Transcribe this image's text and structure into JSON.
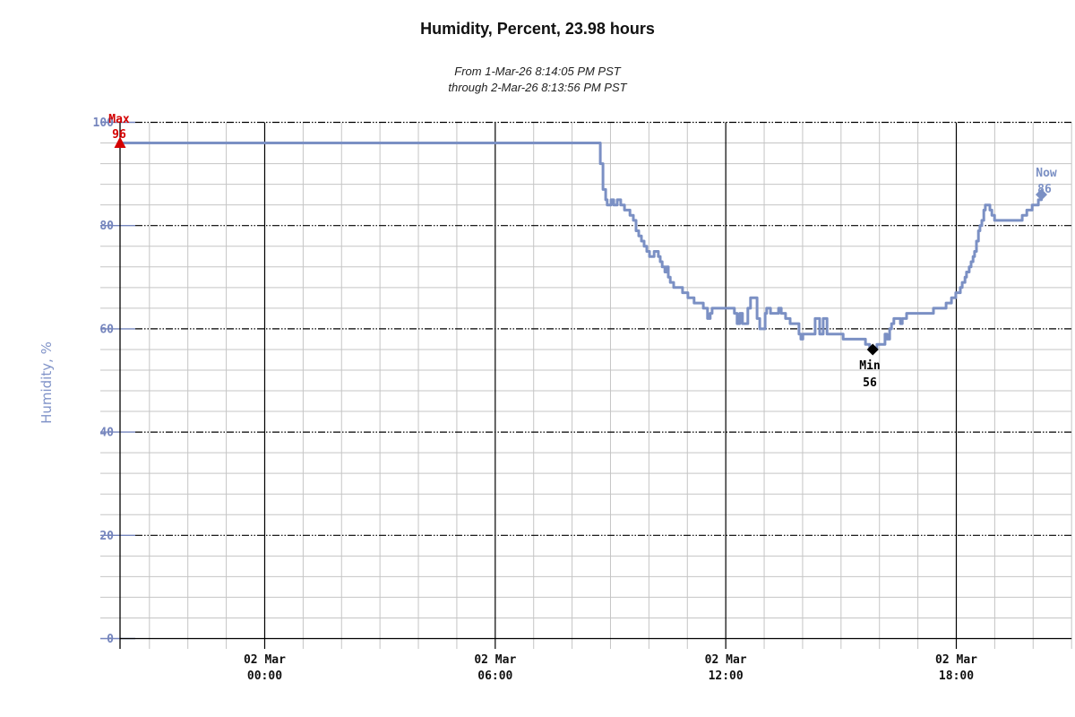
{
  "header": {
    "title": "Humidity, Percent, 23.98 hours",
    "subtitle_line1": "From 1-Mar-26 8:14:05 PM PST",
    "subtitle_line2": "through 2-Mar-26 8:13:56 PM PST"
  },
  "chart_data": {
    "type": "line",
    "title": "Humidity, Percent, 23.98 hours",
    "xlabel": "",
    "ylabel": "Humidity, %",
    "ylim": [
      0,
      100
    ],
    "y_major_ticks": [
      0,
      20,
      40,
      60,
      80,
      100
    ],
    "y_minor_step": 4,
    "duration_hours": 23.98,
    "x_first_minor_hours": 0.765,
    "x_minor_tick_hours": 1,
    "x_axis_end_hours": 24.765,
    "x_major_ticks": [
      {
        "date": "02 Mar",
        "time": "00:00",
        "hours_from_start": 3.765
      },
      {
        "date": "02 Mar",
        "time": "06:00",
        "hours_from_start": 9.765
      },
      {
        "date": "02 Mar",
        "time": "12:00",
        "hours_from_start": 15.765
      },
      {
        "date": "02 Mar",
        "time": "18:00",
        "hours_from_start": 21.765
      }
    ],
    "grid": {
      "minor_color": "#C5C5C5",
      "major_color": "#000000",
      "major_h_dash": "8 2 1.5 2 1.5 2"
    },
    "colors": {
      "line": "#7B90C4",
      "axis_text": "#7585BD",
      "ylabel_text": "#8093C8",
      "max_marker": "#D40000",
      "min_marker": "#000000",
      "now_marker": "#7B90C4"
    },
    "legend": "none",
    "series": [
      {
        "name": "Humidity",
        "unit": "%",
        "points": [
          [
            0,
            96
          ],
          [
            12.45,
            96
          ],
          [
            12.5,
            92
          ],
          [
            12.57,
            87
          ],
          [
            12.64,
            85
          ],
          [
            12.68,
            84
          ],
          [
            12.78,
            85
          ],
          [
            12.85,
            84
          ],
          [
            12.94,
            85
          ],
          [
            13.03,
            84
          ],
          [
            13.13,
            83
          ],
          [
            13.27,
            82
          ],
          [
            13.36,
            81
          ],
          [
            13.43,
            79
          ],
          [
            13.5,
            78
          ],
          [
            13.57,
            77
          ],
          [
            13.64,
            76
          ],
          [
            13.71,
            75
          ],
          [
            13.78,
            74
          ],
          [
            13.85,
            74
          ],
          [
            13.9,
            75
          ],
          [
            13.97,
            75
          ],
          [
            14.01,
            74
          ],
          [
            14.06,
            73
          ],
          [
            14.11,
            72
          ],
          [
            14.18,
            71
          ],
          [
            14.22,
            72
          ],
          [
            14.27,
            70
          ],
          [
            14.32,
            69
          ],
          [
            14.41,
            68
          ],
          [
            14.6,
            68
          ],
          [
            14.64,
            67
          ],
          [
            14.78,
            66
          ],
          [
            14.94,
            65
          ],
          [
            15.18,
            64
          ],
          [
            15.29,
            62
          ],
          [
            15.36,
            63
          ],
          [
            15.41,
            64
          ],
          [
            15.95,
            64
          ],
          [
            15.99,
            63
          ],
          [
            16.06,
            61
          ],
          [
            16.13,
            63
          ],
          [
            16.2,
            61
          ],
          [
            16.27,
            61
          ],
          [
            16.34,
            64
          ],
          [
            16.41,
            66
          ],
          [
            16.51,
            66
          ],
          [
            16.58,
            62
          ],
          [
            16.65,
            60
          ],
          [
            16.72,
            60
          ],
          [
            16.79,
            63
          ],
          [
            16.83,
            64
          ],
          [
            16.93,
            63
          ],
          [
            17.09,
            63
          ],
          [
            17.14,
            64
          ],
          [
            17.21,
            63
          ],
          [
            17.32,
            62
          ],
          [
            17.44,
            61
          ],
          [
            17.63,
            61
          ],
          [
            17.67,
            59
          ],
          [
            17.72,
            58
          ],
          [
            17.77,
            59
          ],
          [
            18.05,
            59
          ],
          [
            18.09,
            62
          ],
          [
            18.16,
            62
          ],
          [
            18.21,
            59
          ],
          [
            18.26,
            59
          ],
          [
            18.3,
            62
          ],
          [
            18.35,
            62
          ],
          [
            18.4,
            59
          ],
          [
            18.75,
            59
          ],
          [
            18.82,
            58
          ],
          [
            18.96,
            58
          ],
          [
            19.33,
            58
          ],
          [
            19.4,
            57
          ],
          [
            19.47,
            57
          ],
          [
            19.51,
            56
          ],
          [
            19.65,
            56
          ],
          [
            19.7,
            57
          ],
          [
            19.86,
            57
          ],
          [
            19.91,
            59
          ],
          [
            19.96,
            58
          ],
          [
            20.03,
            60
          ],
          [
            20.08,
            61
          ],
          [
            20.14,
            62
          ],
          [
            20.26,
            62
          ],
          [
            20.31,
            61
          ],
          [
            20.36,
            62
          ],
          [
            20.47,
            63
          ],
          [
            21.12,
            63
          ],
          [
            21.17,
            64
          ],
          [
            21.45,
            64
          ],
          [
            21.5,
            65
          ],
          [
            21.59,
            65
          ],
          [
            21.64,
            66
          ],
          [
            21.71,
            66
          ],
          [
            21.75,
            67
          ],
          [
            21.82,
            67
          ],
          [
            21.87,
            68
          ],
          [
            21.92,
            69
          ],
          [
            21.99,
            70
          ],
          [
            22.03,
            71
          ],
          [
            22.1,
            72
          ],
          [
            22.15,
            73
          ],
          [
            22.2,
            74
          ],
          [
            22.24,
            75
          ],
          [
            22.29,
            77
          ],
          [
            22.34,
            79
          ],
          [
            22.38,
            80
          ],
          [
            22.43,
            81
          ],
          [
            22.48,
            83
          ],
          [
            22.52,
            84
          ],
          [
            22.59,
            84
          ],
          [
            22.64,
            83
          ],
          [
            22.69,
            82
          ],
          [
            22.76,
            81
          ],
          [
            23.41,
            81
          ],
          [
            23.48,
            82
          ],
          [
            23.55,
            82
          ],
          [
            23.6,
            83
          ],
          [
            23.67,
            83
          ],
          [
            23.74,
            84
          ],
          [
            23.85,
            84
          ],
          [
            23.9,
            85
          ],
          [
            23.95,
            85
          ],
          [
            23.98,
            86
          ]
        ]
      }
    ],
    "markers": [
      {
        "name": "Max",
        "value": 96,
        "hours_from_start": 0,
        "shape": "triangle-up",
        "label": "Max",
        "value_label": "96"
      },
      {
        "name": "Min",
        "value": 56,
        "hours_from_start": 19.59,
        "shape": "diamond",
        "label": "Min",
        "value_label": "56"
      },
      {
        "name": "Now",
        "value": 86,
        "hours_from_start": 23.98,
        "shape": "diamond",
        "label": "Now",
        "value_label": "86"
      }
    ]
  }
}
